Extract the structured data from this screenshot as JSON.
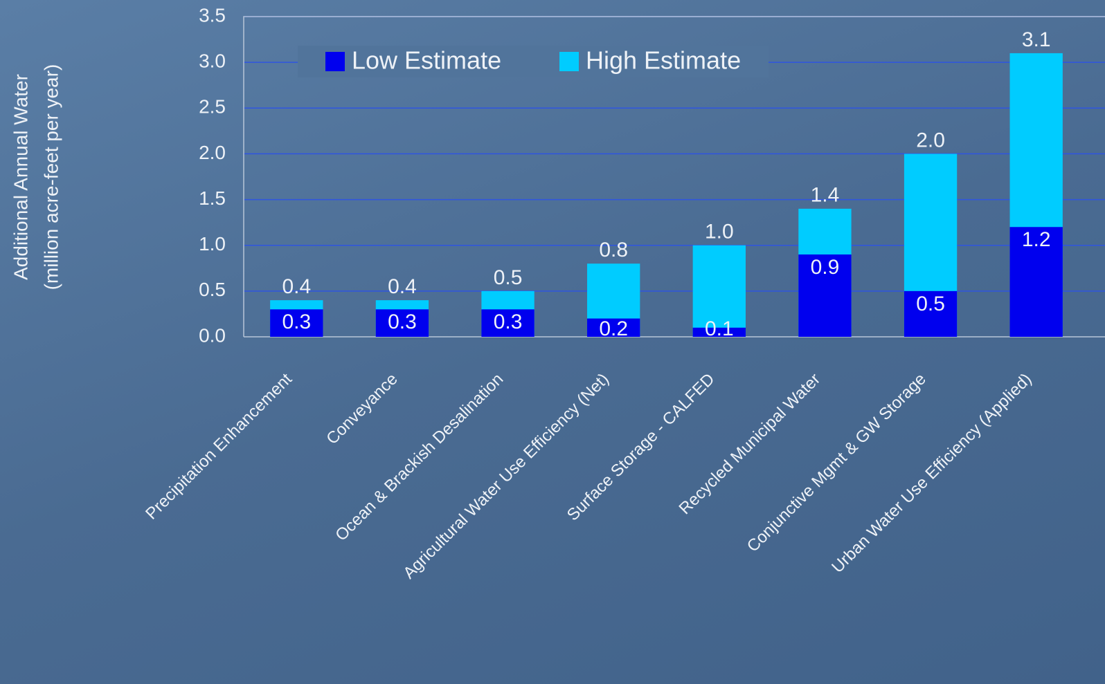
{
  "chart_data": {
    "type": "overlap-bar",
    "ylabel": [
      "Additional Annual Water",
      "(million acre-feet per year)"
    ],
    "categories": [
      "Precipitation Enhancement",
      "Conveyance",
      "Ocean & Brackish Desalination",
      "Agricultural Water Use Efficiency (Net)",
      "Surface Storage - CALFED",
      "Recycled Municipal Water",
      "Conjunctive Mgmt & GW Storage",
      "Urban Water Use Efficiency (Applied)"
    ],
    "series": [
      {
        "name": "High Estimate",
        "color": "#00ccff",
        "values": [
          0.4,
          0.4,
          0.5,
          0.8,
          1.0,
          1.4,
          2.0,
          3.1
        ],
        "value_labels": [
          "0.4",
          "0.4",
          "0.5",
          "0.8",
          "1.0",
          "1.4",
          "2.0",
          "3.1"
        ]
      },
      {
        "name": "Low Estimate",
        "color": "#0000ee",
        "values": [
          0.3,
          0.3,
          0.3,
          0.2,
          0.1,
          0.9,
          0.5,
          1.2
        ]
      }
    ],
    "ylim": [
      0,
      3.5
    ],
    "yticks": [
      {
        "value": 0,
        "label": "0.0"
      },
      0.5,
      {
        "value": 1,
        "label": "1.0"
      },
      1.5,
      {
        "value": 2,
        "label": "2.0"
      },
      2.5,
      {
        "value": 3,
        "label": "3.0"
      },
      3.5
    ],
    "grid": true
  }
}
